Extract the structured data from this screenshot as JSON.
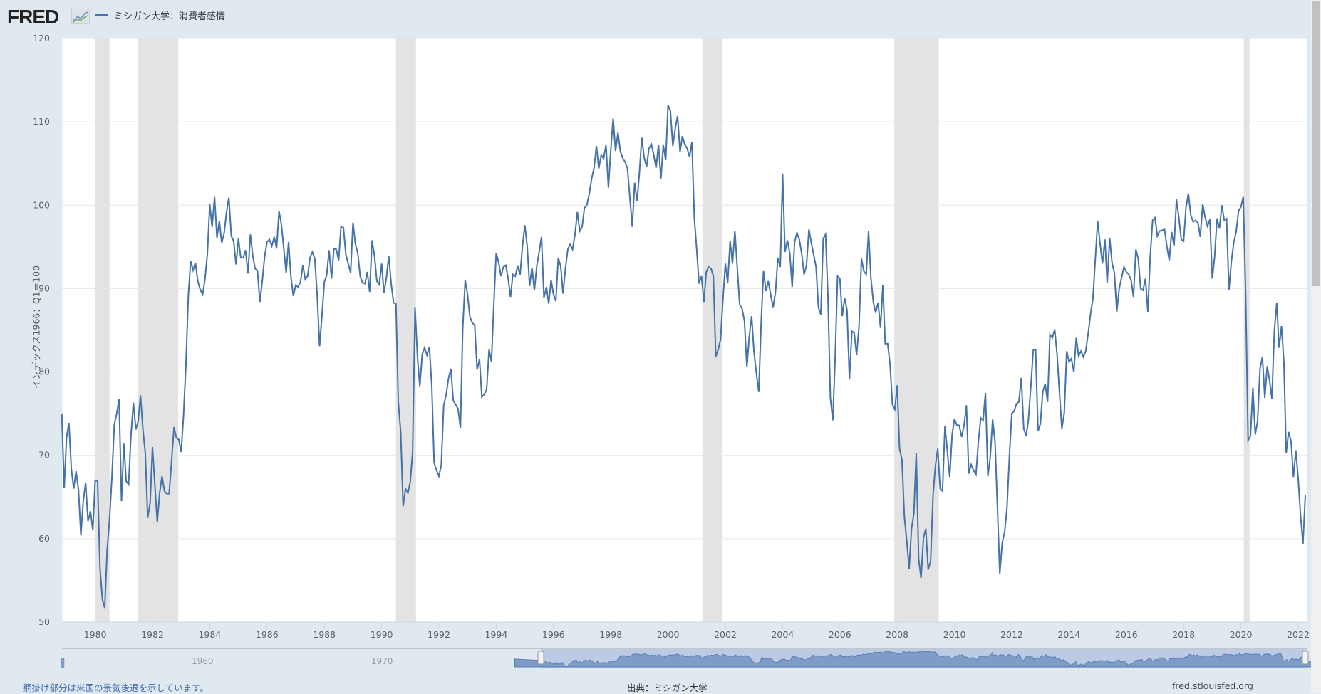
{
  "header": {
    "logo": "FRED",
    "series_title": "ミシガン大学：消費者感情"
  },
  "footer": {
    "note": "網掛け部分は米国の景気後退を示しています。",
    "source": "出典：ミシガン大学",
    "site": "fred.stlouisfed.org"
  },
  "colors": {
    "line": "#4572a7",
    "recession": "#e3e3e3",
    "background": "#e1e9f0"
  },
  "chart_data": {
    "type": "line",
    "title": "ミシガン大学：消費者感情",
    "ylabel": "インデックス1966：Q1＝100",
    "xlabel": "",
    "ylim": [
      50,
      120
    ],
    "yticks": [
      "50",
      "60",
      "70",
      "80",
      "90",
      "100",
      "110",
      "120"
    ],
    "xticks": [
      "1980",
      "1982",
      "1984",
      "1986",
      "1988",
      "1990",
      "1992",
      "1994",
      "1996",
      "1998",
      "2000",
      "2002",
      "2004",
      "2006",
      "2008",
      "2010",
      "2012",
      "2014",
      "2016",
      "2018",
      "2020",
      "2022"
    ],
    "navigator_ticks": [
      "1960",
      "1970"
    ],
    "grid": true,
    "start": "1978-11",
    "frequency": "monthly",
    "recessions": [
      [
        1980.0,
        1980.5
      ],
      [
        1981.5,
        1982.9
      ],
      [
        1990.5,
        1991.2
      ],
      [
        2001.2,
        2001.9
      ],
      [
        2007.9,
        2009.45
      ],
      [
        2020.1,
        2020.3
      ]
    ],
    "values": [
      75.0,
      66.1,
      72.1,
      73.9,
      68.4,
      66.0,
      68.1,
      65.8,
      60.4,
      64.5,
      66.7,
      62.1,
      63.3,
      61.0,
      67.0,
      66.9,
      56.5,
      52.7,
      51.7,
      58.7,
      62.3,
      67.3,
      73.7,
      75.0,
      76.7,
      64.5,
      71.4,
      66.9,
      66.5,
      72.4,
      76.3,
      73.1,
      74.1,
      77.2,
      73.1,
      70.3,
      62.5,
      64.3,
      71.0,
      66.5,
      62.0,
      65.5,
      67.5,
      65.7,
      65.4,
      65.4,
      69.3,
      73.4,
      72.1,
      71.9,
      70.4,
      74.6,
      80.8,
      89.1,
      93.3,
      92.2,
      93.1,
      90.9,
      89.9,
      89.3,
      91.1,
      94.2,
      100.1,
      97.4,
      101.0,
      96.1,
      98.1,
      95.5,
      96.6,
      99.1,
      100.9,
      96.3,
      95.7,
      92.9,
      96.0,
      93.7,
      93.7,
      94.6,
      91.8,
      96.5,
      94.0,
      92.4,
      92.1,
      88.4,
      90.9,
      93.9,
      95.6,
      95.9,
      95.1,
      96.2,
      94.8,
      99.3,
      97.7,
      94.9,
      91.9,
      95.6,
      91.4,
      89.1,
      90.4,
      90.2,
      90.8,
      92.8,
      91.1,
      91.5,
      93.7,
      94.4,
      93.6,
      89.3,
      83.1,
      86.8,
      90.8,
      91.6,
      94.6,
      91.2,
      94.8,
      94.7,
      93.4,
      97.4,
      97.3,
      94.1,
      93.0,
      91.9,
      97.9,
      95.4,
      94.3,
      91.5,
      90.7,
      90.6,
      92.0,
      89.6,
      95.8,
      93.9,
      90.9,
      90.5,
      93.0,
      89.5,
      91.3,
      93.9,
      90.6,
      88.3,
      88.2,
      76.4,
      72.8,
      63.9,
      66.0,
      65.5,
      66.8,
      70.4,
      87.7,
      81.8,
      78.3,
      82.1,
      82.9,
      82.0,
      83.0,
      78.3,
      69.1,
      68.2,
      67.5,
      68.8,
      76.0,
      77.2,
      79.2,
      80.4,
      76.6,
      76.1,
      75.6,
      73.3,
      85.3,
      91.0,
      89.3,
      86.6,
      85.9,
      85.6,
      80.3,
      81.5,
      77.0,
      77.3,
      77.9,
      82.7,
      81.2,
      88.2,
      94.3,
      93.2,
      91.5,
      92.6,
      92.8,
      91.2,
      89.0,
      91.7,
      91.5,
      92.7,
      91.6,
      95.1,
      97.6,
      95.1,
      90.3,
      92.5,
      89.8,
      92.7,
      94.4,
      96.2,
      88.9,
      90.2,
      88.2,
      91.0,
      89.3,
      88.5,
      93.7,
      92.7,
      89.4,
      92.4,
      94.7,
      95.3,
      94.7,
      96.5,
      99.2,
      96.9,
      97.4,
      99.7,
      100.0,
      101.4,
      103.2,
      104.5,
      107.1,
      104.4,
      106.0,
      105.6,
      107.2,
      102.1,
      106.6,
      110.4,
      106.5,
      108.7,
      106.5,
      105.6,
      105.2,
      104.4,
      100.9,
      97.4,
      102.7,
      100.5,
      103.9,
      108.1,
      105.7,
      104.6,
      106.8,
      107.3,
      106.0,
      104.5,
      107.2,
      103.2,
      107.2,
      105.4,
      112.0,
      111.3,
      107.1,
      109.2,
      110.7,
      106.4,
      108.3,
      107.3,
      106.8,
      105.8,
      107.6,
      98.4,
      94.7,
      90.6,
      91.5,
      88.4,
      92.0,
      92.6,
      92.4,
      91.5,
      81.8,
      82.7,
      83.9,
      88.8,
      93.0,
      90.7,
      95.7,
      93.0,
      96.9,
      92.4,
      88.1,
      87.6,
      86.1,
      80.6,
      84.2,
      86.7,
      82.4,
      79.9,
      77.6,
      86.0,
      92.1,
      89.7,
      90.9,
      89.3,
      87.7,
      89.6,
      93.7,
      92.6,
      103.8,
      94.4,
      95.8,
      94.2,
      90.2,
      95.6,
      96.7,
      95.9,
      94.2,
      91.7,
      92.8,
      97.1,
      95.5,
      94.1,
      92.6,
      87.7,
      86.9,
      96.0,
      96.5,
      89.1,
      76.9,
      74.2,
      81.6,
      91.5,
      91.2,
      86.7,
      88.9,
      87.4,
      79.1,
      84.9,
      84.7,
      82.0,
      85.4,
      93.6,
      92.1,
      91.7,
      96.9,
      91.3,
      88.4,
      87.1,
      88.3,
      85.3,
      90.4,
      83.4,
      83.4,
      80.9,
      76.1,
      75.5,
      78.4,
      70.8,
      69.5,
      62.6,
      59.8,
      56.4,
      61.2,
      63.0,
      70.3,
      57.6,
      55.3,
      60.1,
      61.2,
      56.3,
      57.3,
      65.1,
      68.7,
      70.8,
      66.0,
      65.7,
      73.5,
      70.6,
      67.4,
      72.5,
      74.4,
      73.6,
      73.6,
      72.2,
      73.6,
      76.0,
      67.8,
      68.9,
      68.2,
      67.7,
      71.6,
      74.5,
      74.2,
      77.5,
      67.5,
      69.8,
      74.3,
      71.5,
      63.7,
      55.8,
      59.5,
      60.8,
      63.7,
      69.9,
      75.0,
      75.3,
      76.2,
      76.4,
      79.3,
      73.2,
      72.3,
      74.3,
      78.3,
      82.6,
      82.7,
      72.9,
      73.8,
      77.6,
      78.6,
      76.4,
      84.5,
      84.1,
      85.1,
      82.1,
      77.5,
      73.2,
      75.1,
      82.5,
      81.2,
      81.6,
      80.0,
      84.1,
      81.9,
      82.5,
      81.8,
      82.5,
      84.6,
      86.9,
      88.8,
      93.6,
      98.1,
      95.4,
      93.0,
      95.9,
      90.7,
      96.1,
      93.1,
      91.9,
      87.2,
      90.0,
      91.3,
      92.6,
      92.0,
      91.7,
      91.0,
      89.0,
      94.7,
      93.5,
      90.0,
      89.8,
      91.2,
      87.2,
      93.8,
      98.2,
      98.5,
      96.3,
      96.9,
      97.0,
      97.1,
      95.0,
      93.4,
      96.8,
      95.1,
      100.7,
      98.5,
      95.9,
      95.7,
      99.7,
      101.4,
      98.8,
      98.0,
      98.2,
      97.9,
      96.2,
      100.1,
      98.6,
      97.5,
      98.3,
      91.2,
      93.8,
      98.4,
      97.2,
      100.0,
      98.2,
      98.4,
      89.8,
      93.2,
      95.5,
      96.8,
      99.3,
      99.8,
      101.0,
      89.1,
      71.8,
      72.3,
      78.1,
      72.5,
      74.1,
      80.4,
      81.8,
      76.9,
      80.7,
      79.0,
      76.8,
      84.9,
      88.3,
      82.9,
      85.5,
      81.2,
      70.3,
      72.8,
      71.7,
      67.4,
      70.6,
      67.2,
      62.8,
      59.4,
      65.2
    ]
  }
}
